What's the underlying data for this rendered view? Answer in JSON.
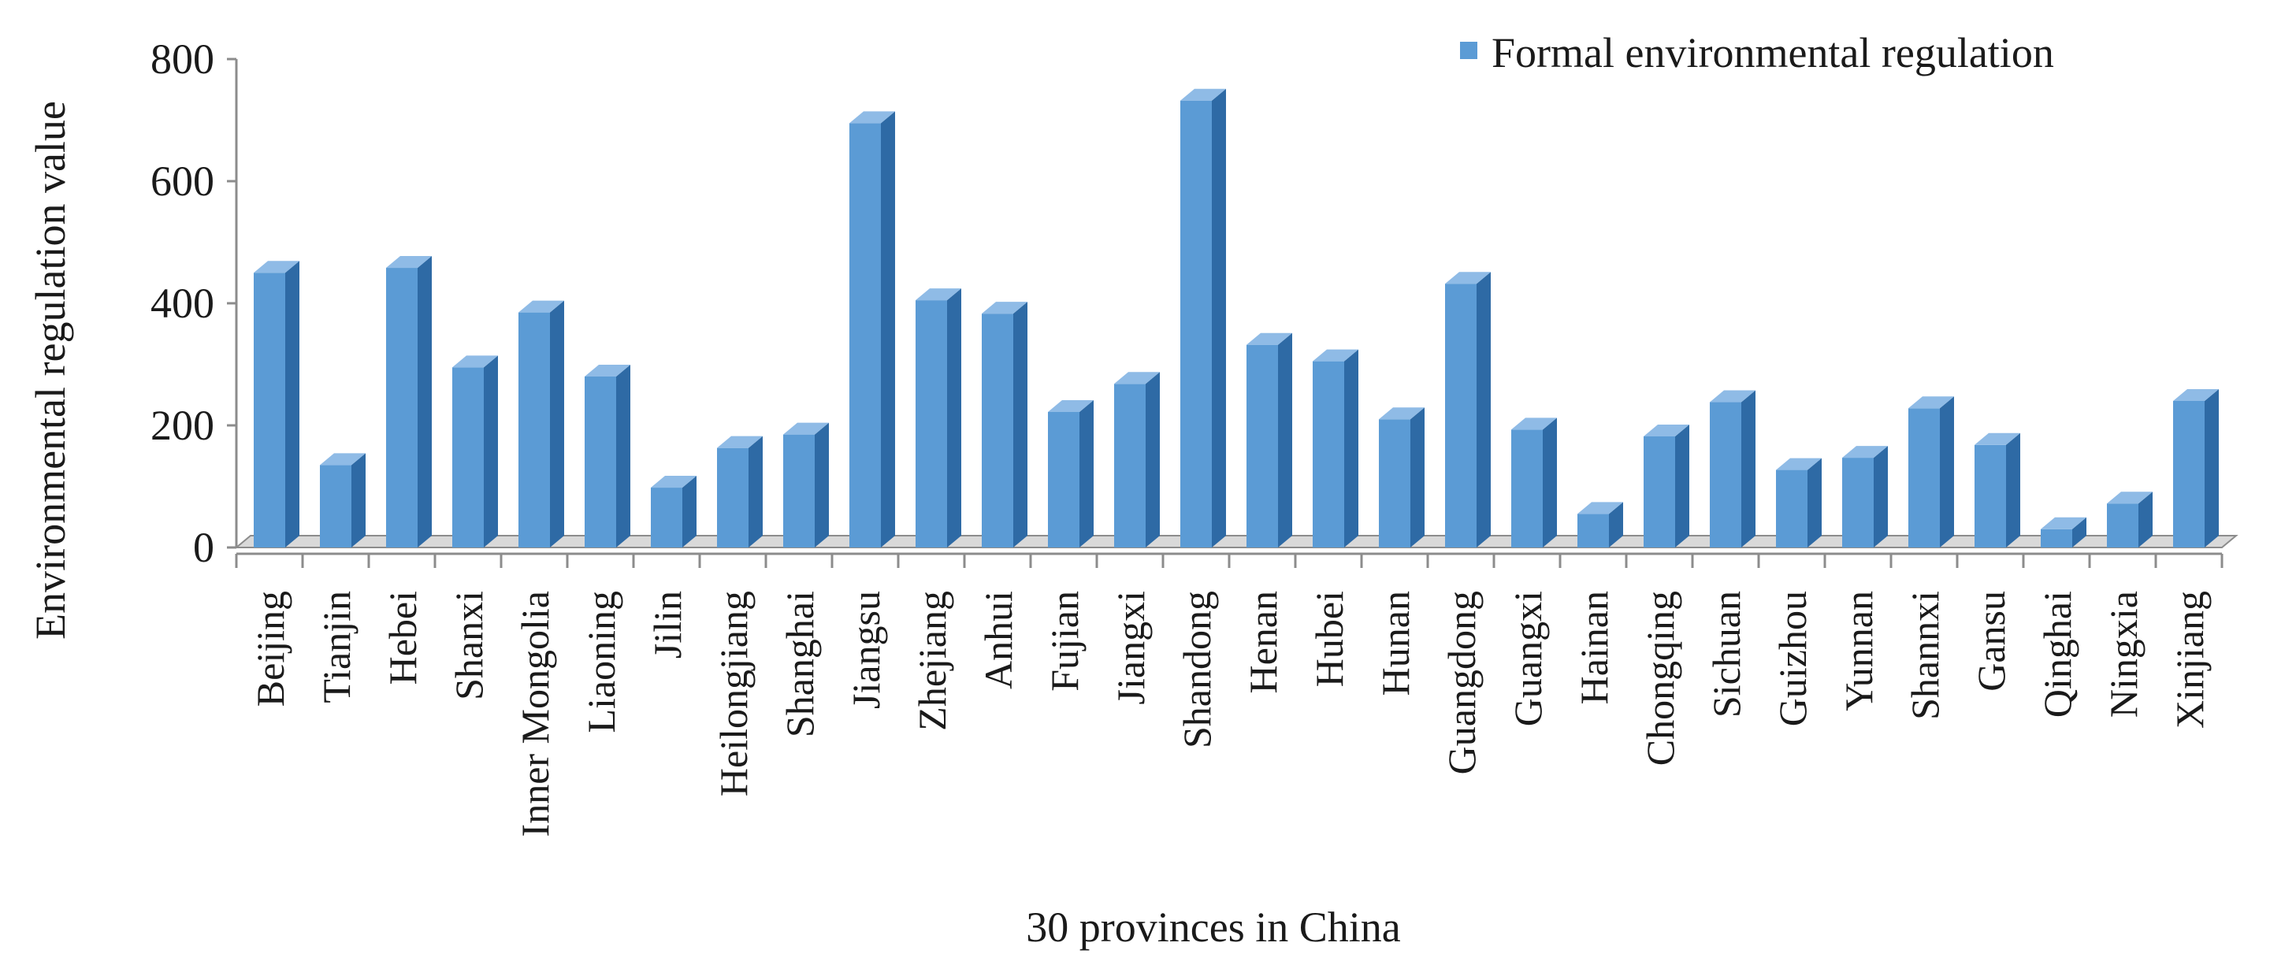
{
  "chart_data": {
    "type": "bar",
    "title": "",
    "xlabel": "30 provinces in China",
    "ylabel": "Environmental regulation value",
    "ylim": [
      0,
      800
    ],
    "yticks": [
      "0",
      "200",
      "400",
      "600",
      "800"
    ],
    "grid": false,
    "legend_position": "top-right",
    "bar_style": "3d",
    "colors": {
      "bar_front": "#5b9bd5",
      "bar_side": "#2e6aa5",
      "bar_top": "#8fbbe6",
      "axis": "#8c8c8c",
      "floor": "#d9d9d9"
    },
    "categories": [
      "Beijing",
      "Tianjin",
      "Hebei",
      "Shanxi",
      "Inner Mongolia",
      "Liaoning",
      "Jilin",
      "Heilongjiang",
      "Shanghai",
      "Jiangsu",
      "Zhejiang",
      "Anhui",
      "Fujian",
      "Jiangxi",
      "Shandong",
      "Henan",
      "Hubei",
      "Hunan",
      "Guangdong",
      "Guangxi",
      "Hainan",
      "Chongqing",
      "Sichuan",
      "Guizhou",
      "Yunnan",
      "Shannxi",
      "Gansu",
      "Qinghai",
      "Ningxia",
      "Xinjiang"
    ],
    "series": [
      {
        "name": "Formal environmental regulation",
        "values": [
          450,
          135,
          458,
          295,
          385,
          280,
          98,
          163,
          185,
          695,
          405,
          383,
          222,
          268,
          732,
          332,
          305,
          210,
          432,
          193,
          55,
          182,
          238,
          127,
          147,
          228,
          168,
          30,
          72,
          240
        ]
      }
    ]
  }
}
